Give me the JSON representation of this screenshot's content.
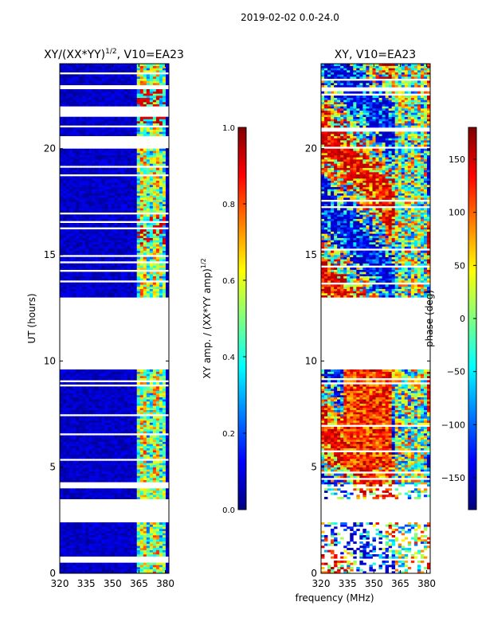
{
  "figure": {
    "suptitle": "2019-02-02 0.0-24.0",
    "shared_xlabel": "frequency (MHz)"
  },
  "colors": {
    "jet": [
      "#00007f",
      "#0000ff",
      "#007fff",
      "#00ffff",
      "#7fff7f",
      "#ffff00",
      "#ff7f00",
      "#ff0000",
      "#7f0000"
    ],
    "flagged": "#ffffff"
  },
  "chart_data": [
    {
      "type": "heatmap",
      "title_main": "XY/(XX*YY)",
      "title_exp": "1/2",
      "title_tail": ", V10=EA23",
      "xlabel": "",
      "ylabel": "UT (hours)",
      "xlim": [
        320,
        382
      ],
      "ylim": [
        0,
        24
      ],
      "xticks": [
        320,
        335,
        350,
        365,
        380
      ],
      "yticks": [
        0,
        5,
        10,
        15,
        20
      ],
      "rfi_band_mhz": [
        363,
        380
      ],
      "flagged_hours": [
        [
          2.4,
          3.5
        ],
        [
          4.0,
          4.3
        ],
        [
          9.6,
          13.0
        ],
        [
          20.0,
          20.6
        ],
        [
          21.6,
          21.9
        ],
        [
          22.8,
          23.0
        ]
      ],
      "colorbar": {
        "label_main": "XY amp. / (XX*YY amp)",
        "label_exp": "1/2",
        "min": 0.0,
        "max": 1.0,
        "ticks": [
          "0.0",
          "0.2",
          "0.4",
          "0.6",
          "0.8",
          "1.0"
        ],
        "tick_values": [
          0.0,
          0.2,
          0.4,
          0.6,
          0.8,
          1.0
        ]
      }
    },
    {
      "type": "heatmap",
      "title": "XY, V10=EA23",
      "xlabel": "frequency (MHz)",
      "ylabel": "",
      "xlim": [
        320,
        382
      ],
      "ylim": [
        0,
        24
      ],
      "xticks": [
        320,
        335,
        350,
        365,
        380
      ],
      "yticks": [
        0,
        5,
        10,
        15,
        20
      ],
      "flagged_hours": [
        [
          2.4,
          3.5
        ],
        [
          9.6,
          13.0
        ]
      ],
      "colorbar": {
        "label": "phase (deg)",
        "min": -180,
        "max": 180,
        "ticks": [
          "150",
          "100",
          "50",
          "0",
          "−50",
          "−100",
          "−150"
        ],
        "tick_values": [
          150,
          100,
          50,
          0,
          -50,
          -100,
          -150
        ]
      }
    }
  ]
}
